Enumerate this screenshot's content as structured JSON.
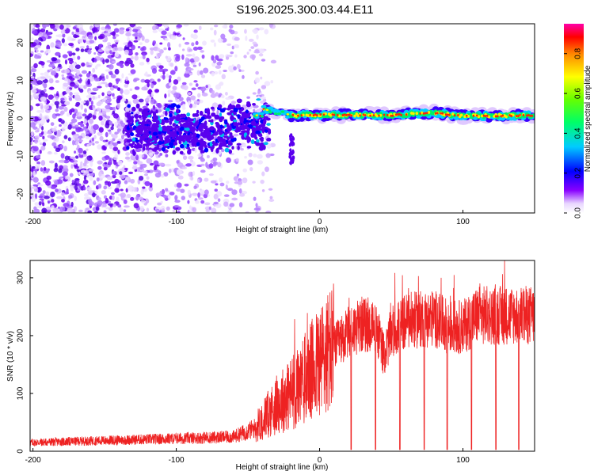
{
  "title": "S196.2025.300.03.44.E11",
  "colors": {
    "snr_line": "#ee2222",
    "scatter_purple": "#6a00ee",
    "axis": "#000000"
  },
  "chart_data": [
    {
      "type": "heatmap",
      "name": "spectrogram",
      "xlabel": "Height of straight line (km)",
      "ylabel": "Frequency (Hz)",
      "xlim": [
        -202,
        150
      ],
      "ylim": [
        -25,
        25
      ],
      "xticks": [
        -200,
        -100,
        0,
        100
      ],
      "xtick_labels": [
        "-200",
        "-100",
        "0",
        "100"
      ],
      "yticks": [
        -20,
        -10,
        0,
        10,
        20
      ],
      "ytick_labels": [
        "-20",
        "-10",
        "0",
        "10",
        "20"
      ],
      "ridge": {
        "x_start": -20,
        "x_end": 150,
        "frequency_hz": 0.8,
        "description_points": [
          {
            "x": -40,
            "y": 2.5
          },
          {
            "x": -20,
            "y": 0.8
          },
          {
            "x": 0,
            "y": 0.9
          },
          {
            "x": 50,
            "y": 0.8
          },
          {
            "x": 80,
            "y": 1.5
          },
          {
            "x": 100,
            "y": 0.6
          },
          {
            "x": 150,
            "y": 0.8
          }
        ]
      },
      "colorbar": {
        "label": "Normalized spectral amplitude",
        "range": [
          0,
          0.95
        ],
        "ticks": [
          0.0,
          0.2,
          0.4,
          0.6,
          0.8
        ],
        "tick_labels": [
          "0.0",
          "0.2",
          "0.4",
          "0.6",
          "0.8"
        ]
      }
    },
    {
      "type": "line",
      "name": "snr",
      "xlabel": "Height of straight line (km)",
      "ylabel": "SNR (10 * v/v)",
      "xlim": [
        -202,
        150
      ],
      "ylim": [
        0,
        330
      ],
      "xticks": [
        -200,
        -100,
        0,
        100
      ],
      "xtick_labels": [
        "-200",
        "-100",
        "0",
        "100"
      ],
      "yticks": [
        0,
        100,
        200,
        300
      ],
      "ytick_labels": [
        "0",
        "100",
        "200",
        "300"
      ],
      "series": [
        {
          "name": "SNR",
          "envelope_x": [
            -202,
            -100,
            -60,
            -45,
            -30,
            -15,
            0,
            10,
            20,
            30,
            40,
            45,
            50,
            60,
            80,
            90,
            100,
            110,
            130,
            150
          ],
          "envelope_y": [
            15,
            22,
            25,
            40,
            80,
            110,
            155,
            180,
            205,
            220,
            210,
            165,
            205,
            225,
            230,
            215,
            215,
            235,
            235,
            235
          ],
          "dropouts_x": [
            22,
            39,
            56,
            73,
            89,
            106,
            123,
            139
          ]
        }
      ]
    }
  ]
}
